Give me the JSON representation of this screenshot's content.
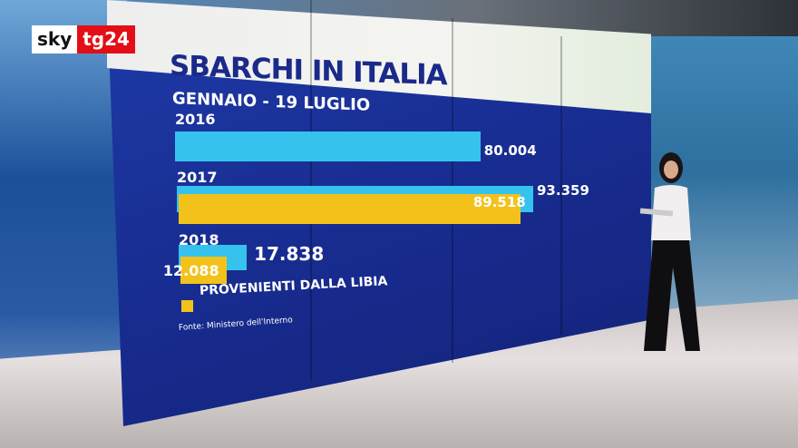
{
  "logo": {
    "part1": "sky",
    "part2": "tg24"
  },
  "chart_data": {
    "type": "bar",
    "title": "SBARCHI IN ITALIA",
    "subtitle": "GENNAIO - 19 LUGLIO",
    "categories": [
      "2016",
      "2017",
      "2018"
    ],
    "series": [
      {
        "name": "",
        "values": [
          80004,
          93359,
          17838
        ],
        "labels": [
          "80.004",
          "93.359",
          "17.838"
        ],
        "color": "#35c3ee"
      },
      {
        "name": "PROVENIENTI DALLA LIBIA",
        "values": [
          null,
          89518,
          12088
        ],
        "labels": [
          "",
          "89.518",
          "12.088"
        ],
        "color": "#f2c21b"
      }
    ],
    "orientation": "horizontal",
    "legend": "bottom-left",
    "source": "Fonte: Ministero dell'Interno"
  }
}
